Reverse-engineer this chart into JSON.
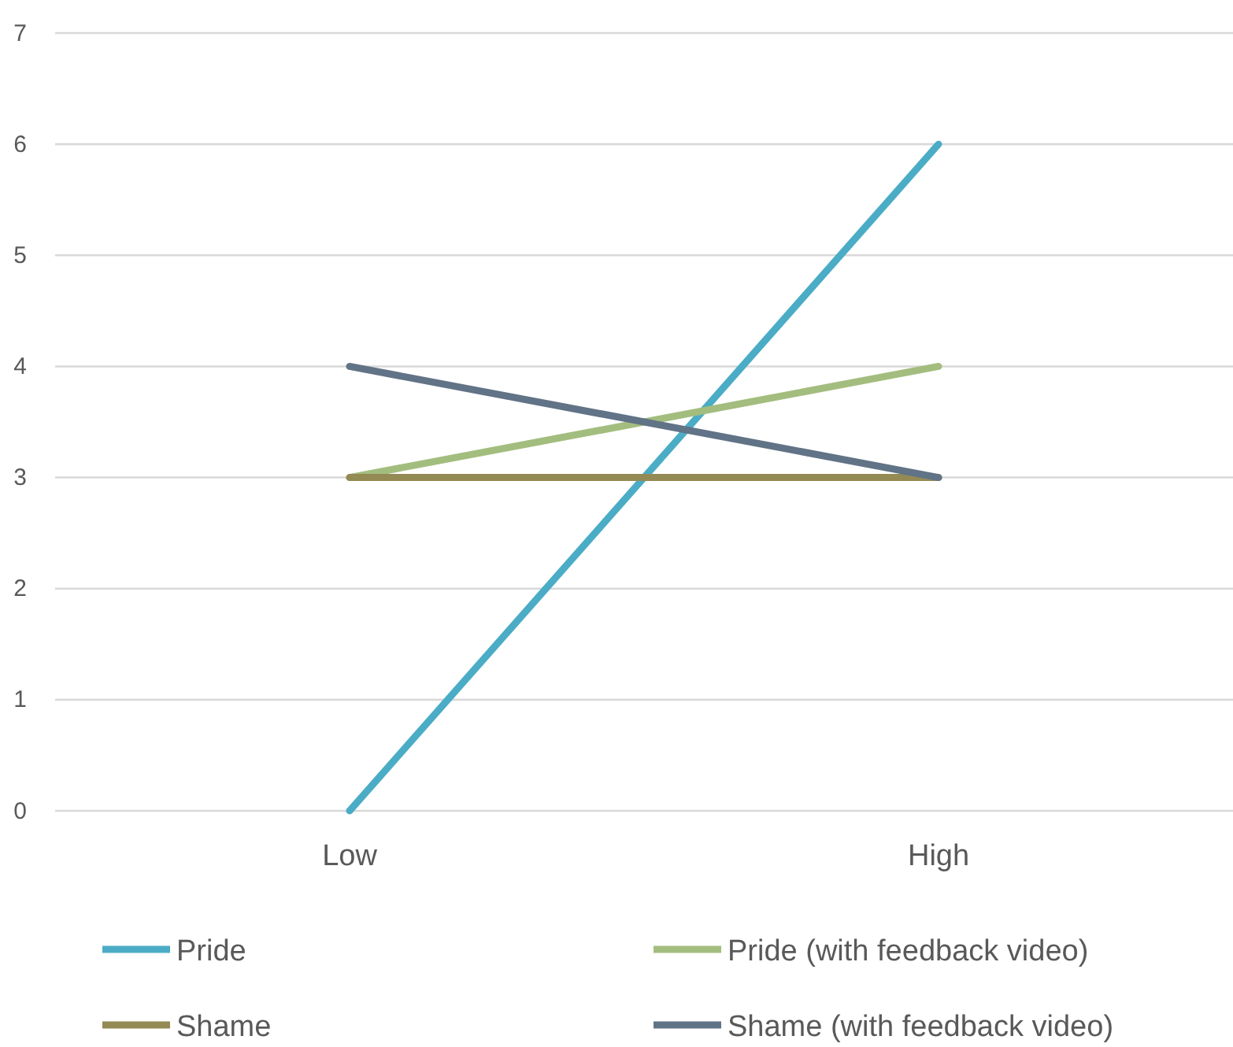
{
  "chart_data": {
    "type": "line",
    "categories": [
      "Low",
      "High"
    ],
    "series": [
      {
        "name": "Pride",
        "color": "#4bacc6",
        "values": [
          0,
          6
        ]
      },
      {
        "name": "Pride (with feedback video)",
        "color": "#a3bd7e",
        "values": [
          3,
          4
        ]
      },
      {
        "name": "Shame",
        "color": "#948a54",
        "values": [
          3,
          3
        ]
      },
      {
        "name": "Shame (with feedback video)",
        "color": "#617386",
        "values": [
          4,
          3
        ]
      }
    ],
    "ylim": [
      0,
      7
    ],
    "yticks": [
      0,
      1,
      2,
      3,
      4,
      5,
      6,
      7
    ],
    "grid": "y",
    "legend": "bottom",
    "marker": "none",
    "line_style": "solid"
  }
}
